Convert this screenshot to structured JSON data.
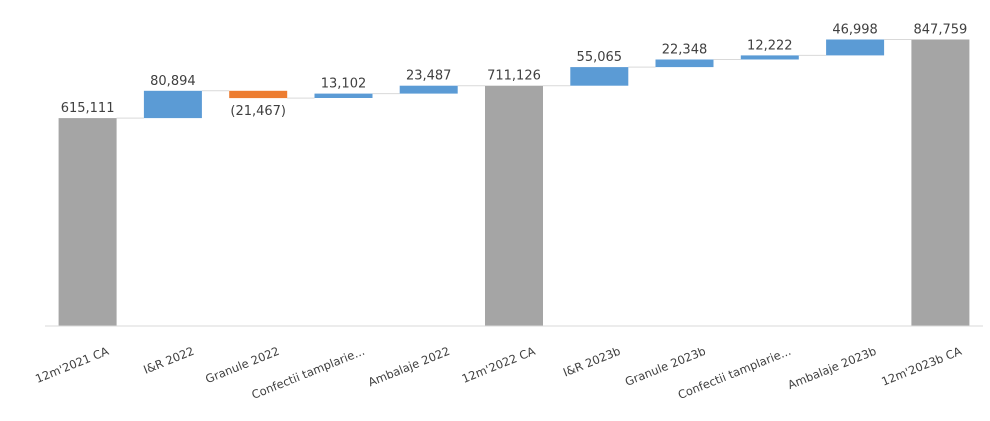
{
  "chart_data": {
    "type": "bar",
    "subtype": "waterfall",
    "categories": [
      "12m'2021 CA",
      "I&R 2022",
      "Granule 2022",
      "Confectii tamplarie...",
      "Ambalaje 2022",
      "12m'2022 CA",
      "I&R 2023b",
      "Granule 2023b",
      "Confectii tamplarie...",
      "Ambalaje 2023b",
      "12m'2023b CA"
    ],
    "values": [
      615111,
      80894,
      -21467,
      13102,
      23487,
      711126,
      55065,
      22348,
      12222,
      46998,
      847759
    ],
    "value_labels": [
      "615,111",
      "80,894",
      "(21,467)",
      "13,102",
      "23,487",
      "711,126",
      "55,065",
      "22,348",
      "12,222",
      "46,998",
      "847,759"
    ],
    "kinds": [
      "total",
      "delta",
      "delta",
      "delta",
      "delta",
      "total",
      "delta",
      "delta",
      "delta",
      "delta",
      "total"
    ],
    "colors": {
      "total": "#a5a5a5",
      "increase": "#5b9bd5",
      "decrease": "#ed7d31",
      "connector": "#d9d9d9",
      "axis": "#d9d9d9",
      "label": "#404040"
    },
    "ylim": [
      0,
      870000
    ],
    "grid": false,
    "legend": "none"
  }
}
